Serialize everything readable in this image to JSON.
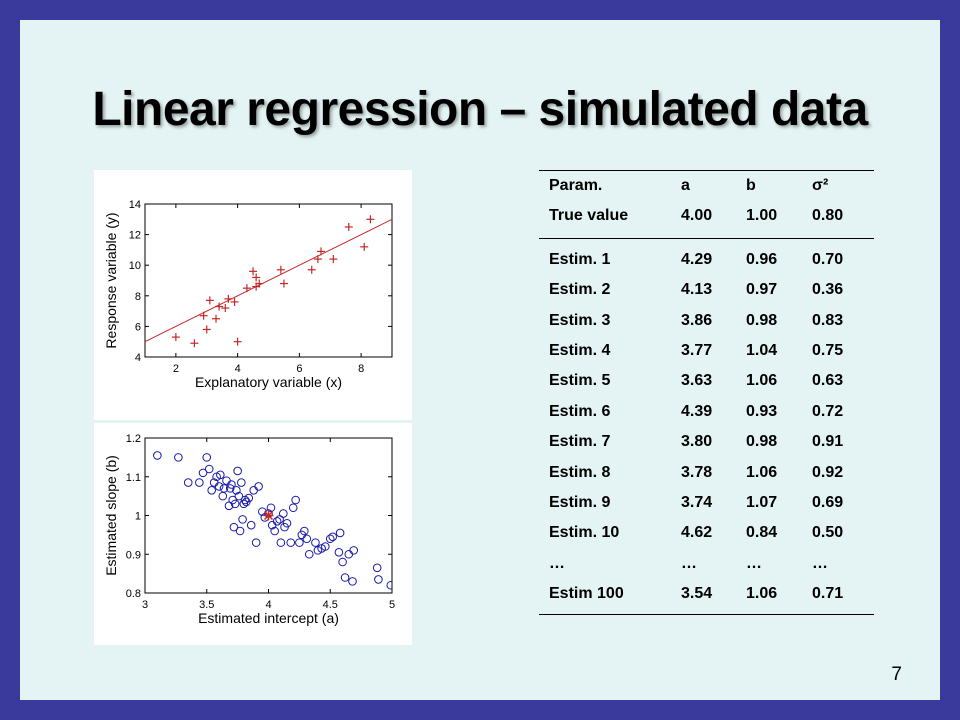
{
  "slide": {
    "title": "Linear regression – simulated data",
    "page_number": "7",
    "colors": {
      "frame": "#3a3a9c",
      "background": "#e4f3f3",
      "scatter": "#c62828",
      "circles": "#1a1aa8"
    }
  },
  "table": {
    "header": [
      "Param.",
      "a",
      "b",
      "σ²"
    ],
    "true_row": [
      "True value",
      "4.00",
      "1.00",
      "0.80"
    ],
    "rows": [
      [
        "Estim. 1",
        "4.29",
        "0.96",
        "0.70"
      ],
      [
        "Estim. 2",
        "4.13",
        "0.97",
        "0.36"
      ],
      [
        "Estim. 3",
        "3.86",
        "0.98",
        "0.83"
      ],
      [
        "Estim. 4",
        "3.77",
        "1.04",
        "0.75"
      ],
      [
        "Estim. 5",
        "3.63",
        "1.06",
        "0.63"
      ],
      [
        "Estim. 6",
        "4.39",
        "0.93",
        "0.72"
      ],
      [
        "Estim. 7",
        "3.80",
        "0.98",
        "0.91"
      ],
      [
        "Estim. 8",
        "3.78",
        "1.06",
        "0.92"
      ],
      [
        "Estim. 9",
        "3.74",
        "1.07",
        "0.69"
      ],
      [
        "Estim. 10",
        "4.62",
        "0.84",
        "0.50"
      ],
      [
        "…",
        "…",
        "…",
        "…"
      ],
      [
        "Estim 100",
        "3.54",
        "1.06",
        "0.71"
      ]
    ]
  },
  "chart_data": [
    {
      "type": "scatter",
      "xlabel": "Explanatory variable (x)",
      "ylabel": "Response variable (y)",
      "xlim": [
        1,
        9
      ],
      "ylim": [
        4,
        14
      ],
      "xticks": [
        "2",
        "4",
        "6",
        "8"
      ],
      "yticks": [
        "4",
        "6",
        "8",
        "10",
        "12",
        "14"
      ],
      "marker": "plus",
      "points": [
        [
          2.0,
          5.3
        ],
        [
          2.6,
          4.9
        ],
        [
          2.9,
          6.7
        ],
        [
          3.0,
          5.8
        ],
        [
          3.1,
          7.7
        ],
        [
          3.3,
          6.5
        ],
        [
          3.4,
          7.3
        ],
        [
          3.6,
          7.2
        ],
        [
          3.7,
          7.8
        ],
        [
          3.9,
          7.6
        ],
        [
          4.0,
          5.0
        ],
        [
          4.3,
          8.5
        ],
        [
          4.5,
          9.6
        ],
        [
          4.6,
          9.2
        ],
        [
          4.6,
          8.6
        ],
        [
          4.7,
          8.8
        ],
        [
          5.4,
          9.7
        ],
        [
          5.5,
          8.8
        ],
        [
          6.4,
          9.7
        ],
        [
          6.6,
          10.4
        ],
        [
          6.7,
          10.9
        ],
        [
          7.1,
          10.4
        ],
        [
          7.6,
          12.5
        ],
        [
          8.1,
          11.2
        ],
        [
          8.3,
          13.0
        ]
      ],
      "regression_line": {
        "intercept": 4.0,
        "slope": 1.0,
        "x_range": [
          1,
          9
        ]
      }
    },
    {
      "type": "scatter",
      "xlabel": "Estimated intercept (a)",
      "ylabel": "Estimated slope (b)",
      "xlim": [
        3,
        5
      ],
      "ylim": [
        0.8,
        1.2
      ],
      "xticks": [
        "3",
        "3.5",
        "4",
        "4.5",
        "5"
      ],
      "yticks": [
        "0.8",
        "0.9",
        "1",
        "1.1",
        "1.2"
      ],
      "marker": "circle",
      "true_value": [
        4.0,
        1.0
      ],
      "points": [
        [
          3.1,
          1.155
        ],
        [
          3.27,
          1.15
        ],
        [
          3.35,
          1.085
        ],
        [
          3.44,
          1.085
        ],
        [
          3.47,
          1.11
        ],
        [
          3.5,
          1.15
        ],
        [
          3.52,
          1.12
        ],
        [
          3.54,
          1.065
        ],
        [
          3.56,
          1.085
        ],
        [
          3.58,
          1.1
        ],
        [
          3.6,
          1.075
        ],
        [
          3.61,
          1.105
        ],
        [
          3.63,
          1.05
        ],
        [
          3.64,
          1.07
        ],
        [
          3.66,
          1.09
        ],
        [
          3.68,
          1.025
        ],
        [
          3.69,
          1.07
        ],
        [
          3.7,
          1.08
        ],
        [
          3.71,
          1.04
        ],
        [
          3.72,
          0.97
        ],
        [
          3.73,
          1.03
        ],
        [
          3.74,
          1.065
        ],
        [
          3.75,
          1.115
        ],
        [
          3.76,
          1.05
        ],
        [
          3.77,
          0.96
        ],
        [
          3.78,
          1.085
        ],
        [
          3.79,
          0.99
        ],
        [
          3.8,
          1.03
        ],
        [
          3.81,
          1.04
        ],
        [
          3.82,
          1.035
        ],
        [
          3.84,
          1.045
        ],
        [
          3.86,
          0.975
        ],
        [
          3.88,
          1.065
        ],
        [
          3.9,
          0.93
        ],
        [
          3.92,
          1.075
        ],
        [
          3.95,
          1.01
        ],
        [
          3.97,
          0.995
        ],
        [
          4.0,
          1.005
        ],
        [
          4.02,
          1.02
        ],
        [
          4.03,
          0.975
        ],
        [
          4.05,
          0.96
        ],
        [
          4.07,
          0.985
        ],
        [
          4.09,
          0.99
        ],
        [
          4.1,
          0.93
        ],
        [
          4.12,
          1.005
        ],
        [
          4.13,
          0.97
        ],
        [
          4.15,
          0.98
        ],
        [
          4.18,
          0.93
        ],
        [
          4.2,
          1.02
        ],
        [
          4.22,
          1.04
        ],
        [
          4.25,
          0.93
        ],
        [
          4.27,
          0.95
        ],
        [
          4.29,
          0.96
        ],
        [
          4.31,
          0.94
        ],
        [
          4.33,
          0.9
        ],
        [
          4.38,
          0.93
        ],
        [
          4.4,
          0.91
        ],
        [
          4.43,
          0.915
        ],
        [
          4.46,
          0.92
        ],
        [
          4.5,
          0.94
        ],
        [
          4.52,
          0.945
        ],
        [
          4.57,
          0.905
        ],
        [
          4.58,
          0.955
        ],
        [
          4.6,
          0.88
        ],
        [
          4.62,
          0.84
        ],
        [
          4.65,
          0.9
        ],
        [
          4.68,
          0.83
        ],
        [
          4.69,
          0.91
        ],
        [
          4.88,
          0.865
        ],
        [
          4.89,
          0.835
        ],
        [
          4.99,
          0.82
        ]
      ]
    }
  ]
}
